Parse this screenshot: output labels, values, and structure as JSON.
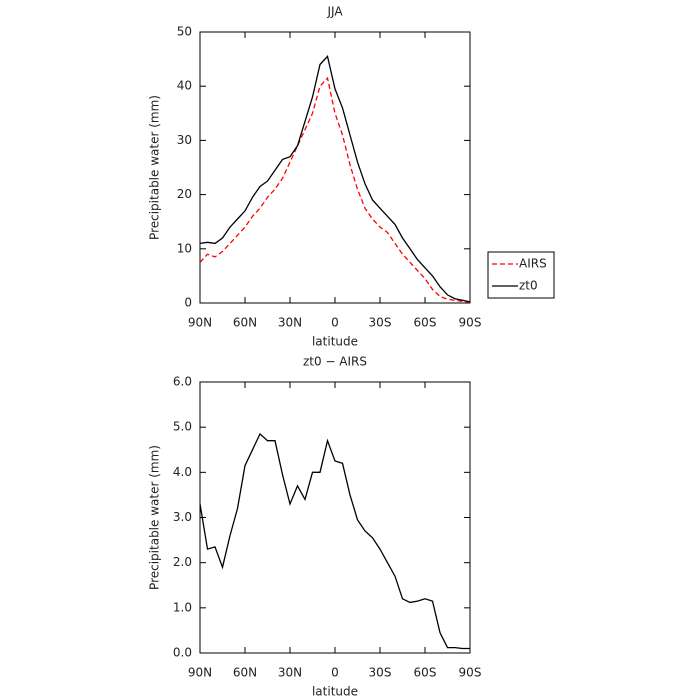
{
  "chart_data": [
    {
      "type": "line",
      "title": "JJA",
      "xlabel": "latitude",
      "ylabel": "Precipitable water (mm)",
      "x": [
        90,
        85,
        80,
        75,
        70,
        65,
        60,
        55,
        50,
        45,
        40,
        35,
        30,
        25,
        20,
        15,
        10,
        5,
        0,
        -5,
        -10,
        -15,
        -20,
        -25,
        -30,
        -35,
        -40,
        -45,
        -50,
        -55,
        -60,
        -65,
        -70,
        -75,
        -80,
        -85,
        -90
      ],
      "series": [
        {
          "name": "AIRS",
          "color": "#ff0000",
          "line_style": "dashed",
          "values": [
            7.5,
            9,
            8.5,
            9.5,
            11,
            12.5,
            14,
            16,
            17.5,
            19.5,
            21,
            23,
            26,
            29,
            32,
            35,
            40,
            41.5,
            35,
            31,
            25.5,
            21,
            17.5,
            15.5,
            14,
            13,
            11,
            9,
            7.5,
            6,
            4.5,
            2.5,
            1.2,
            0.7,
            0.5,
            0.3,
            0.1
          ]
        },
        {
          "name": "zt0",
          "color": "#000000",
          "line_style": "solid",
          "values": [
            11,
            11.2,
            11,
            12,
            14,
            15.5,
            17,
            19.5,
            21.5,
            22.5,
            24.5,
            26.5,
            27,
            29,
            33.5,
            38,
            44,
            45.5,
            39.5,
            36,
            31,
            26,
            22,
            19,
            17.5,
            16,
            14.5,
            12,
            10,
            8,
            6.5,
            5,
            3,
            1.5,
            0.8,
            0.5,
            0.2
          ]
        }
      ],
      "xlim": [
        90,
        -90
      ],
      "xticks": [
        {
          "value": 90,
          "label": "90N"
        },
        {
          "value": 60,
          "label": "60N"
        },
        {
          "value": 30,
          "label": "30N"
        },
        0,
        {
          "value": -30,
          "label": "30S"
        },
        {
          "value": -60,
          "label": "60S"
        },
        {
          "value": -90,
          "label": "90S"
        }
      ],
      "ylim": [
        0,
        50
      ],
      "yticks": [
        0,
        10,
        20,
        30,
        40,
        50
      ],
      "legend": "right"
    },
    {
      "type": "line",
      "title": "zt0 − AIRS",
      "xlabel": "latitude",
      "ylabel": "Precipitable water (mm)",
      "x": [
        90,
        85,
        80,
        75,
        70,
        65,
        60,
        55,
        50,
        45,
        40,
        35,
        30,
        25,
        20,
        15,
        10,
        5,
        0,
        -5,
        -10,
        -15,
        -20,
        -25,
        -30,
        -35,
        -40,
        -45,
        -50,
        -55,
        -60,
        -65,
        -70,
        -75,
        -80,
        -85,
        -90
      ],
      "series": [
        {
          "color": "#000000",
          "line_style": "solid",
          "values": [
            3.3,
            2.3,
            2.35,
            1.9,
            2.6,
            3.2,
            4.15,
            4.5,
            4.85,
            4.7,
            4.7,
            3.95,
            3.3,
            3.7,
            3.4,
            4.0,
            4.0,
            4.7,
            4.25,
            4.2,
            3.5,
            2.95,
            2.7,
            2.55,
            2.3,
            2.0,
            1.7,
            1.2,
            1.12,
            1.15,
            1.2,
            1.15,
            0.45,
            0.12,
            0.12,
            0.1,
            0.1
          ]
        }
      ],
      "xlim": [
        90,
        -90
      ],
      "xticks": [
        {
          "value": 90,
          "label": "90N"
        },
        {
          "value": 60,
          "label": "60N"
        },
        {
          "value": 30,
          "label": "30N"
        },
        0,
        {
          "value": -30,
          "label": "30S"
        },
        {
          "value": -60,
          "label": "60S"
        },
        {
          "value": -90,
          "label": "90S"
        }
      ],
      "ylim": [
        0,
        6
      ],
      "yticks": [
        {
          "value": 0,
          "label": "0.0"
        },
        {
          "value": 1,
          "label": "1.0"
        },
        {
          "value": 2,
          "label": "2.0"
        },
        {
          "value": 3,
          "label": "3.0"
        },
        {
          "value": 4,
          "label": "4.0"
        },
        {
          "value": 5,
          "label": "5.0"
        },
        {
          "value": 6,
          "label": "6.0"
        }
      ]
    }
  ]
}
